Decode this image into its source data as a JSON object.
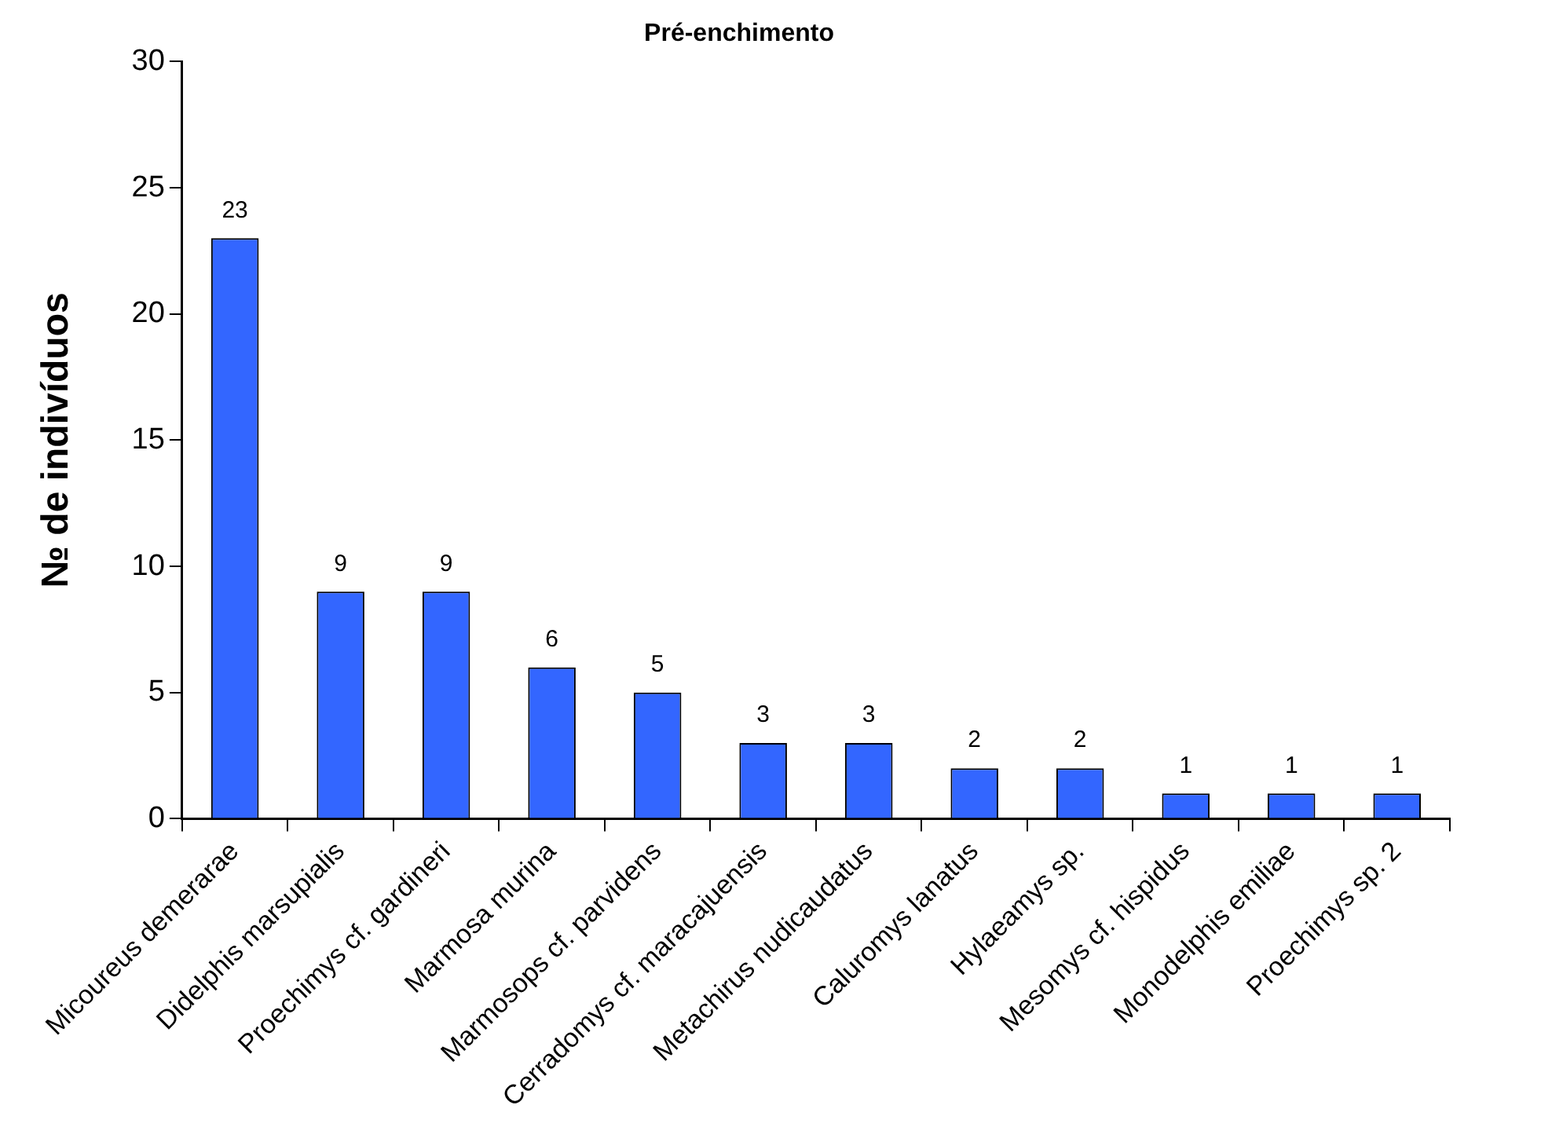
{
  "chart_data": {
    "type": "bar",
    "title": "Pré-enchimento",
    "ylabel": "№ de indivíduos",
    "categories": [
      "Micoureus demerarae",
      "Didelphis marsupialis",
      "Proechimys cf. gardineri",
      "Marmosa murina",
      "Marmosops cf. parvidens",
      "Cerradomys cf. maracajuensis",
      "Metachirus nudicaudatus",
      "Caluromys lanatus",
      "Hylaeamys sp.",
      "Mesomys cf. hispidus",
      "Monodelphis emiliae",
      "Proechimys sp. 2"
    ],
    "values": [
      23,
      9,
      9,
      6,
      5,
      3,
      3,
      2,
      2,
      1,
      1,
      1
    ],
    "color": "#3366ff",
    "ylim": [
      0,
      30
    ],
    "yticks": [
      0,
      5,
      10,
      15,
      20,
      25,
      30
    ],
    "grid": false,
    "legend": false,
    "data_labels": true
  }
}
